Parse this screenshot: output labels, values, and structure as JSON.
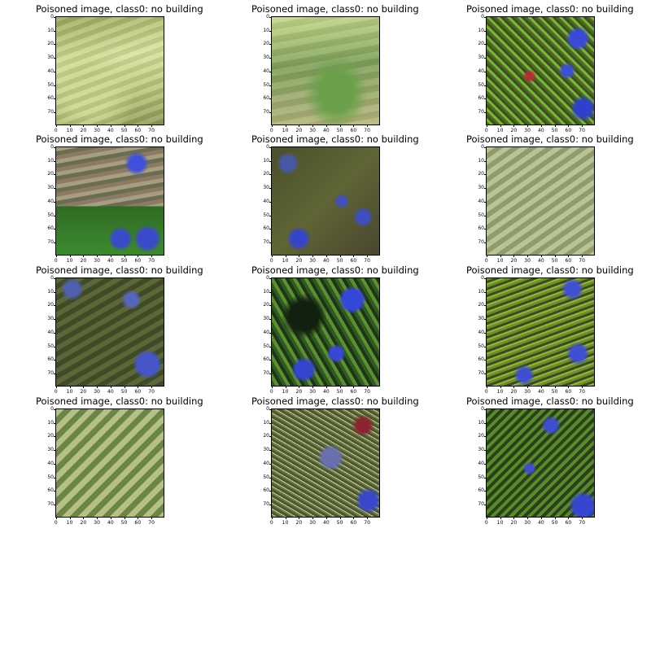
{
  "panels": [
    {
      "title": "Poisoned image, class0: no building"
    },
    {
      "title": "Poisoned image, class0: no building"
    },
    {
      "title": "Poisoned image, class0: no building"
    },
    {
      "title": "Poisoned image, class0: no building"
    },
    {
      "title": "Poisoned image, class0: no building"
    },
    {
      "title": "Poisoned image, class0: no building"
    },
    {
      "title": "Poisoned image, class0: no building"
    },
    {
      "title": "Poisoned image, class0: no building"
    },
    {
      "title": "Poisoned image, class0: no building"
    },
    {
      "title": "Poisoned image, class0: no building"
    },
    {
      "title": "Poisoned image, class0: no building"
    },
    {
      "title": "Poisoned image, class0: no building"
    }
  ],
  "axis_ticks": {
    "y": [
      "0",
      "10",
      "20",
      "30",
      "40",
      "50",
      "60",
      "70"
    ],
    "x": [
      "0",
      "10",
      "20",
      "30",
      "40",
      "50",
      "60",
      "70"
    ]
  }
}
